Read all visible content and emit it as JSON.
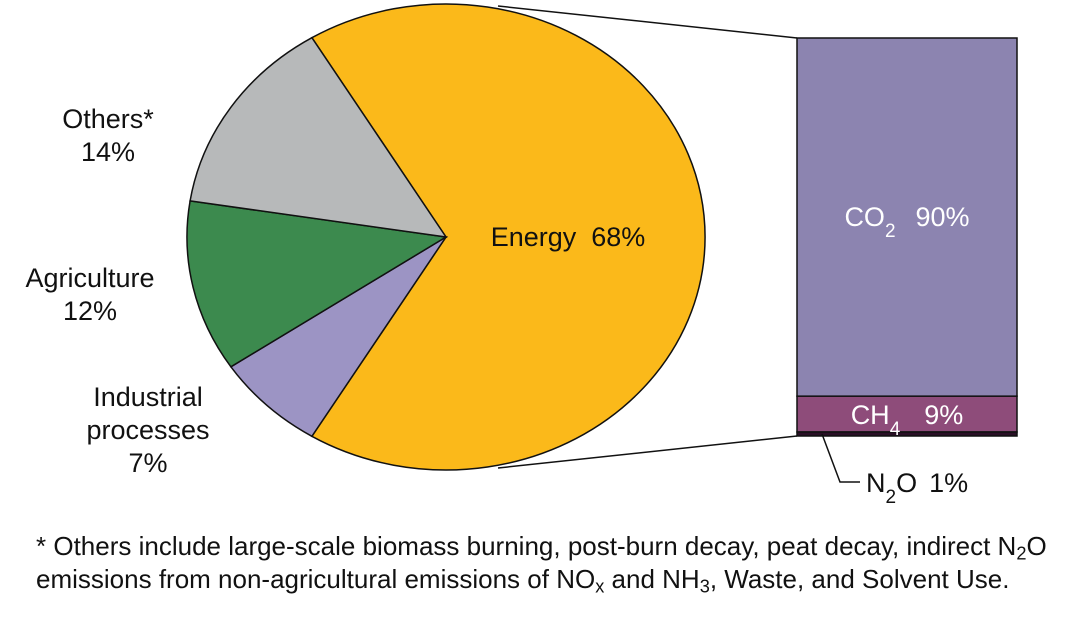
{
  "chart_data": [
    {
      "type": "pie",
      "slices": [
        {
          "name": "Energy",
          "value": 68,
          "label": "Energy  68%",
          "color": "#FBB91A"
        },
        {
          "name": "Industrial processes",
          "value": 7,
          "label_lines": [
            "Industrial",
            "processes",
            "7%"
          ],
          "color": "#9C94C4"
        },
        {
          "name": "Agriculture",
          "value": 12,
          "label_lines": [
            "Agriculture",
            "12%"
          ],
          "color": "#3C8A4E"
        },
        {
          "name": "Others*",
          "value": 14,
          "label_lines": [
            "Others*",
            "14%"
          ],
          "color": "#B7B9BA"
        }
      ]
    },
    {
      "type": "bar",
      "stacked": true,
      "parent": "Energy",
      "segments": [
        {
          "formula": "CO",
          "sub": "2",
          "value": 90,
          "pct": "90%",
          "color": "#8C84B0"
        },
        {
          "formula": "CH",
          "sub": "4",
          "value": 9,
          "pct": "9%",
          "color": "#8E4C7A"
        },
        {
          "formula": "N",
          "sub": "2",
          "suffix": "O",
          "value": 1,
          "pct": "1%",
          "color": "#2A1026"
        }
      ]
    }
  ],
  "footnote": {
    "t1": "* Others include large-scale biomass burning, post-burn decay, peat decay, indirect N",
    "s1": "2",
    "t2": "O emissions from non-agricultural emissions of NO",
    "s2": "x",
    "t3": " and NH",
    "s3": "3",
    "t4": ", Waste, and Solvent Use."
  }
}
